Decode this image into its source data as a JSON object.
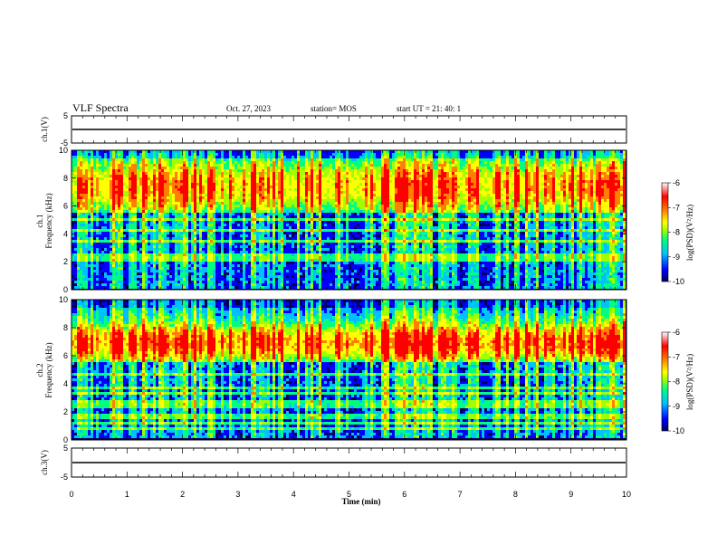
{
  "header": {
    "title": "VLF Spectra",
    "date": "Oct. 27, 2023",
    "station": "station= MOS",
    "start": "start  UT =   21: 40: 1"
  },
  "chart_data": [
    {
      "type": "line",
      "panel": "ch1-waveform",
      "ylabel": "ch.1(V)",
      "yticks": [
        "5",
        "-5"
      ],
      "ylim": [
        -5,
        5
      ],
      "baseline": 0
    },
    {
      "type": "heatmap",
      "panel": "ch1-spectrogram",
      "ylabel_top": "ch.1",
      "ylabel": "Frequency (kHz)",
      "yticks": [
        "0",
        "2",
        "4",
        "6",
        "8",
        "10"
      ],
      "ylim": [
        0,
        10
      ],
      "xlim": [
        0,
        10
      ],
      "colorbar": {
        "ticks": [
          "-6",
          "-7",
          "-8",
          "-9",
          "-10"
        ],
        "range": [
          -10,
          -6
        ],
        "label": "log(PSD)(V²/Hz)",
        "colors": [
          "#000060",
          "#0000ff",
          "#00c0ff",
          "#00ff80",
          "#a0ff00",
          "#ffff00",
          "#ff8000",
          "#ff0000",
          "#ffffff"
        ]
      }
    },
    {
      "type": "heatmap",
      "panel": "ch2-spectrogram",
      "ylabel_top": "ch.2",
      "ylabel": "Frequency (kHz)",
      "yticks": [
        "0",
        "2",
        "4",
        "6",
        "8",
        "10"
      ],
      "ylim": [
        0,
        10
      ],
      "xlim": [
        0,
        10
      ],
      "colorbar": {
        "ticks": [
          "-6",
          "-7",
          "-8",
          "-9",
          "-10"
        ],
        "range": [
          -10,
          -6
        ],
        "label": "log(PSD)(V²/Hz)",
        "colors": [
          "#000060",
          "#0000ff",
          "#00c0ff",
          "#00ff80",
          "#a0ff00",
          "#ffff00",
          "#ff8000",
          "#ff0000",
          "#ffffff"
        ]
      }
    },
    {
      "type": "line",
      "panel": "ch3-waveform",
      "ylabel": "ch.3(V)",
      "yticks": [
        "5",
        "-5"
      ],
      "ylim": [
        -5,
        5
      ],
      "baseline": 0
    }
  ],
  "xaxis": {
    "label": "Time (min)",
    "ticks": [
      "0",
      "1",
      "2",
      "3",
      "4",
      "5",
      "6",
      "7",
      "8",
      "9",
      "10"
    ]
  }
}
